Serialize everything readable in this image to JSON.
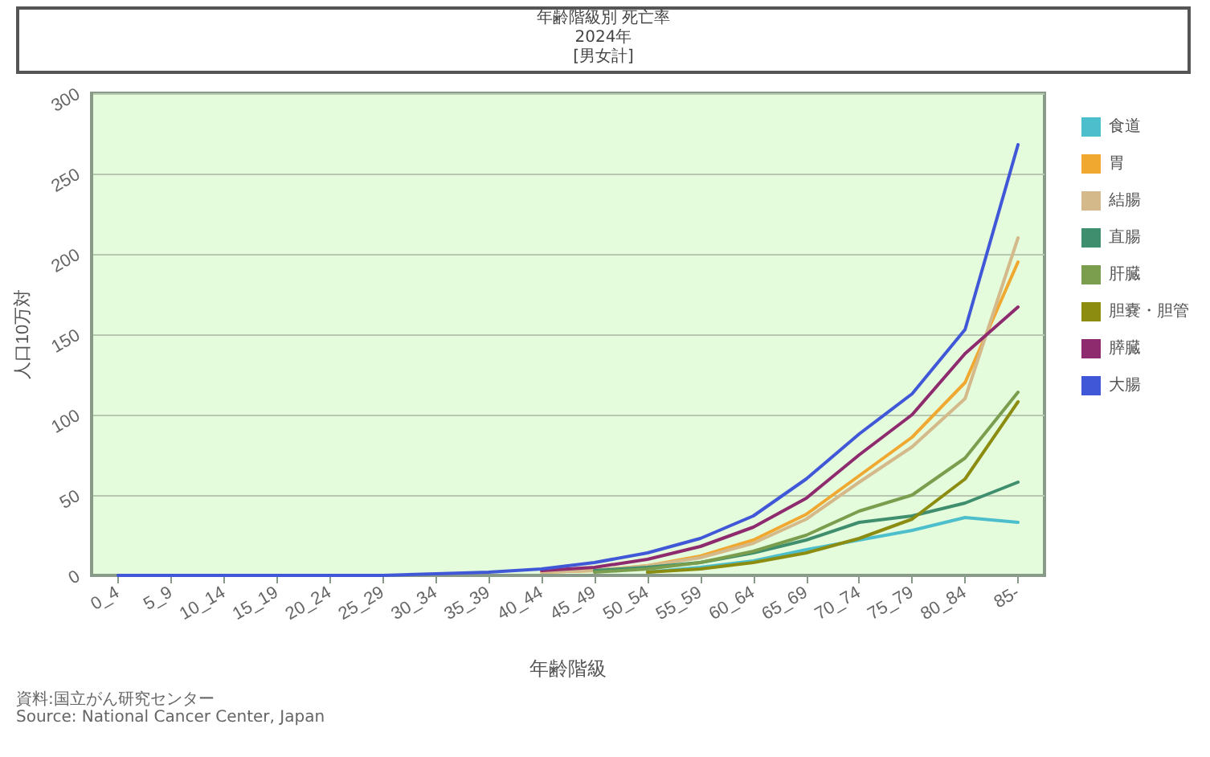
{
  "chart_data": {
    "type": "line",
    "title": "年齢階級別 死亡率",
    "subtitle": "2024年\n[男女計]",
    "xlabel": "年齢階級",
    "ylabel": "人口10万対",
    "annotations": [
      "資料:国立がん研究センター",
      "Source: National Cancer Center, Japan"
    ],
    "categories": [
      "0_4",
      "5_9",
      "10_14",
      "15_19",
      "20_24",
      "25_29",
      "30_34",
      "35_39",
      "40_44",
      "45_49",
      "50_54",
      "55_59",
      "60_64",
      "65_69",
      "70_74",
      "75_79",
      "80_84",
      "85-"
    ],
    "series": [
      {
        "name": "食道",
        "color": "#4dbfcc",
        "values": [
          null,
          null,
          null,
          null,
          null,
          null,
          null,
          null,
          null,
          null,
          2,
          5,
          9,
          16,
          22,
          28,
          36,
          33
        ]
      },
      {
        "name": "胃",
        "color": "#f0a830",
        "values": [
          null,
          null,
          null,
          null,
          null,
          null,
          null,
          null,
          2,
          3,
          6,
          12,
          22,
          38,
          62,
          86,
          120,
          195
        ]
      },
      {
        "name": "結腸",
        "color": "#d4b98a",
        "values": [
          null,
          null,
          null,
          null,
          null,
          null,
          null,
          null,
          2,
          3,
          6,
          11,
          20,
          35,
          58,
          80,
          110,
          210
        ]
      },
      {
        "name": "直腸",
        "color": "#3f8f6e",
        "values": [
          null,
          null,
          null,
          null,
          null,
          null,
          null,
          null,
          null,
          3,
          5,
          8,
          14,
          22,
          33,
          37,
          45,
          58
        ]
      },
      {
        "name": "肝臓",
        "color": "#7a9e4e",
        "values": [
          null,
          null,
          null,
          null,
          null,
          null,
          null,
          null,
          null,
          2,
          4,
          8,
          15,
          25,
          40,
          50,
          73,
          114
        ]
      },
      {
        "name": "胆嚢・胆管",
        "color": "#8c8c10",
        "values": [
          null,
          null,
          null,
          null,
          null,
          null,
          null,
          null,
          null,
          null,
          2,
          4,
          8,
          14,
          23,
          35,
          60,
          108
        ]
      },
      {
        "name": "膵臓",
        "color": "#8e2a6e",
        "values": [
          null,
          null,
          null,
          null,
          null,
          null,
          null,
          null,
          3,
          5,
          10,
          18,
          30,
          48,
          75,
          100,
          138,
          167
        ]
      },
      {
        "name": "大腸",
        "color": "#4058d8",
        "values": [
          0,
          0,
          0,
          0,
          0,
          0,
          1,
          2,
          4,
          8,
          14,
          23,
          37,
          60,
          88,
          113,
          153,
          268
        ]
      }
    ],
    "ylim": [
      0,
      300
    ],
    "yticks": [
      0,
      50,
      100,
      150,
      200,
      250,
      300
    ],
    "grid": "y",
    "legend": "right",
    "marker": "none",
    "line_style": "solid"
  }
}
